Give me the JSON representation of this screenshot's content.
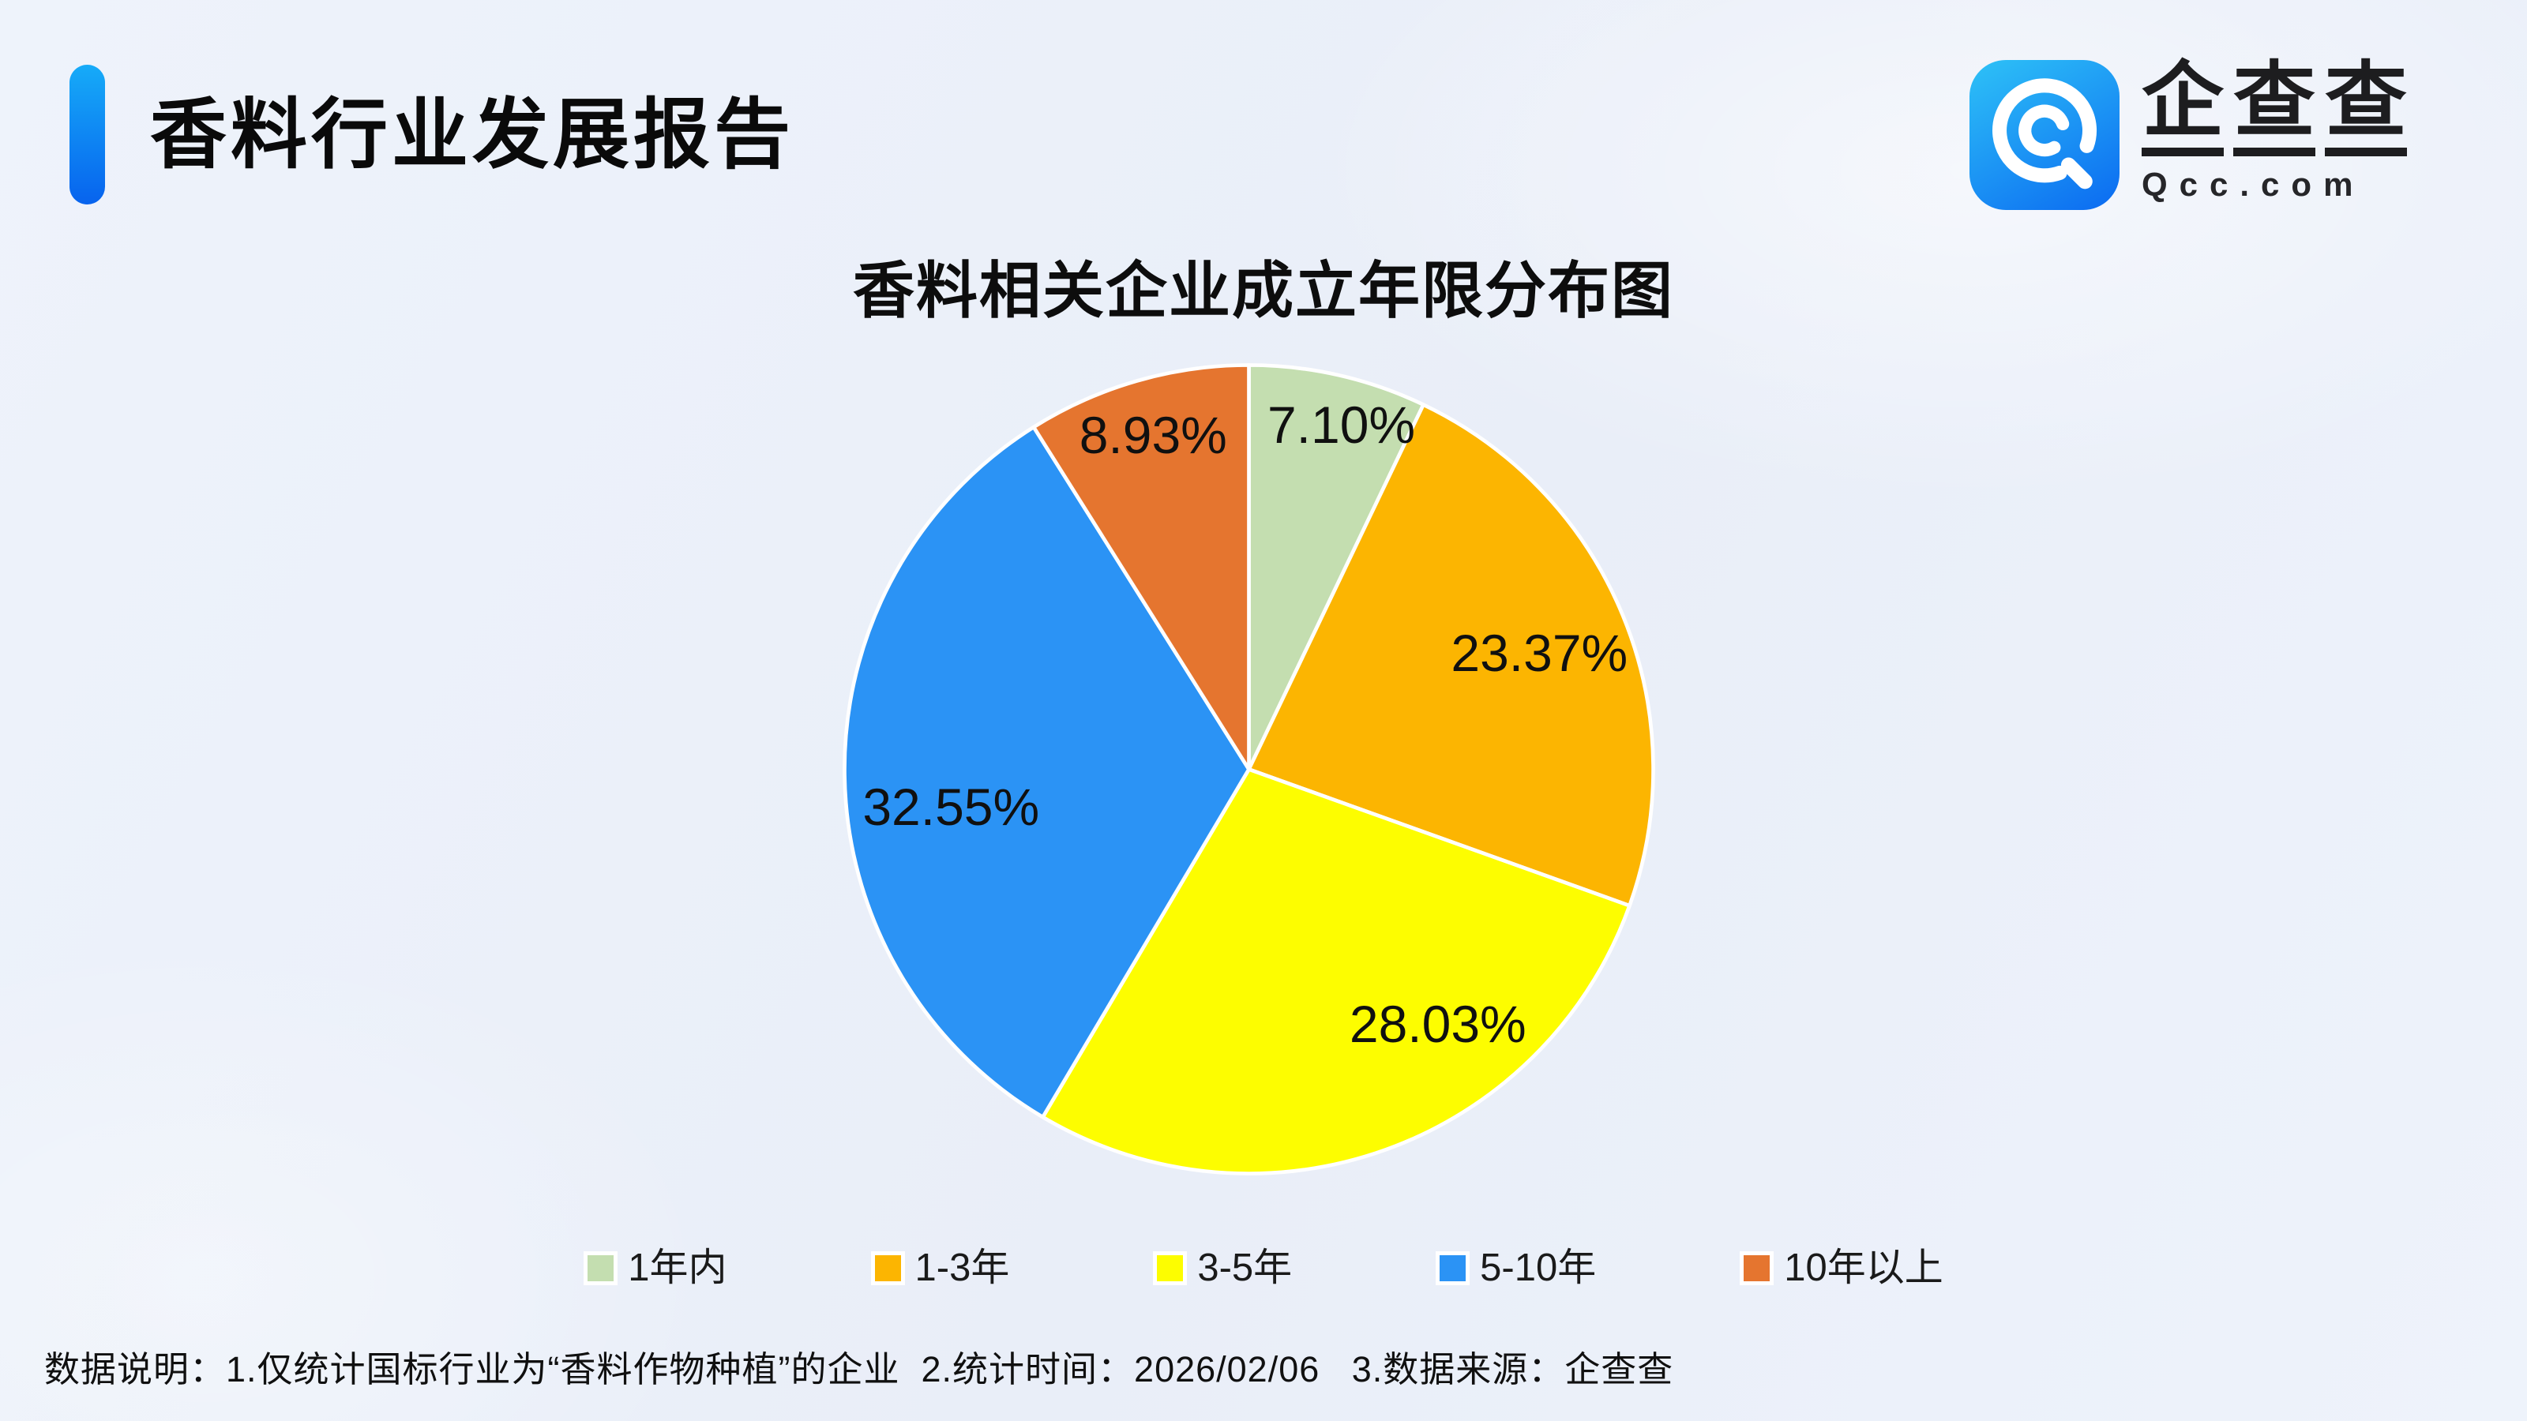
{
  "header": {
    "title": "香料行业发展报告"
  },
  "logo": {
    "brand_cn": "企查查",
    "brand_en": "Qcc.com",
    "icon": "qcc-magnifier-icon",
    "icon_gradient_start": "#2ec2f7",
    "icon_gradient_end": "#0b6af1"
  },
  "chart_data": {
    "type": "pie",
    "title": "香料相关企业成立年限分布图",
    "unit": "%",
    "start_angle_deg": 0,
    "direction": "clockwise",
    "legend_position": "bottom",
    "slice_border_color": "#ffffff",
    "label_color": "#101010",
    "slices": [
      {
        "label": "1年内",
        "value": 7.1,
        "display": "7.10%",
        "color": "#c4deb0"
      },
      {
        "label": "1-3年",
        "value": 23.37,
        "display": "23.37%",
        "color": "#fcb501"
      },
      {
        "label": "3-5年",
        "value": 28.03,
        "display": "28.03%",
        "color": "#fdfd00"
      },
      {
        "label": "5-10年",
        "value": 32.55,
        "display": "32.55%",
        "color": "#2b93f5"
      },
      {
        "label": "10年以上",
        "value": 8.93,
        "display": "8.93%",
        "color": "#e5752f"
      }
    ]
  },
  "footer": {
    "text": "数据说明：1.仅统计国标行业为“香料作物种植”的企业  2.统计时间：2026/02/06   3.数据来源：企查查"
  },
  "colors": {
    "accent_bar_top": "#16abf8",
    "accent_bar_bottom": "#0763ee",
    "background": "#edf2fa",
    "title_text": "#0a0a0a"
  }
}
